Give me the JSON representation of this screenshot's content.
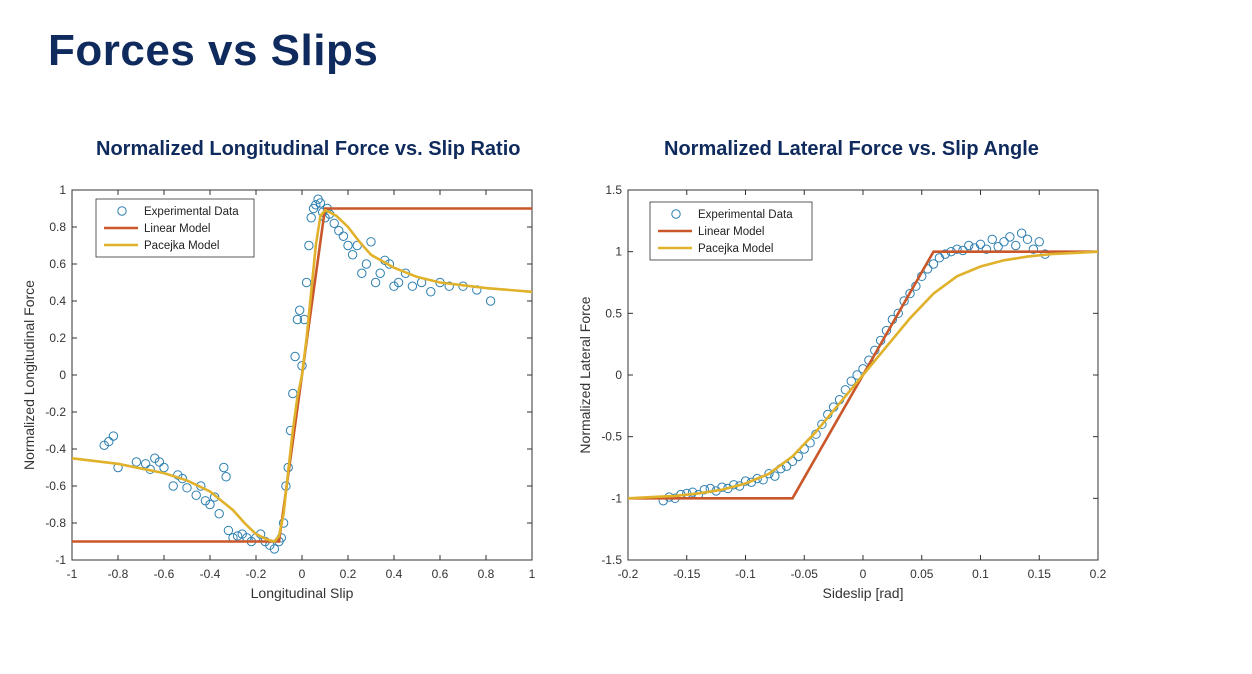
{
  "slide": {
    "title": "Forces vs Slips"
  },
  "colors": {
    "title": "#0f2a5c",
    "experimental": "#2d7fb0",
    "linear": "#c9572a",
    "pacejka": "#e0b12a"
  },
  "chart_data": [
    {
      "type": "scatter",
      "title": "Normalized Longitudinal Force vs. Slip Ratio",
      "xlabel": "Longitudinal Slip",
      "ylabel": "Normalized Longitudinal Force",
      "xlim": [
        -1,
        1
      ],
      "ylim": [
        -1,
        1
      ],
      "xticks": [
        -1,
        -0.8,
        -0.6,
        -0.4,
        -0.2,
        0,
        0.2,
        0.4,
        0.6,
        0.8,
        1
      ],
      "yticks": [
        -1,
        -0.8,
        -0.6,
        -0.4,
        -0.2,
        0,
        0.2,
        0.4,
        0.6,
        0.8,
        1
      ],
      "xtick_labels": [
        "-1",
        "-0.8",
        "-0.6",
        "-0.4",
        "-0.2",
        "0",
        "0.2",
        "0.4",
        "0.6",
        "0.8",
        "1"
      ],
      "ytick_labels": [
        "-1",
        "-0.8",
        "-0.6",
        "-0.4",
        "-0.2",
        "0",
        "0.2",
        "0.4",
        "0.6",
        "0.8",
        "1"
      ],
      "legend": [
        "Experimental Data",
        "Linear Model",
        "Pacejka Model"
      ],
      "legend_position": "top-left",
      "series": [
        {
          "name": "Experimental Data",
          "kind": "markers",
          "x": [
            -0.86,
            -0.84,
            -0.82,
            -0.8,
            -0.72,
            -0.68,
            -0.66,
            -0.64,
            -0.62,
            -0.6,
            -0.56,
            -0.54,
            -0.52,
            -0.5,
            -0.46,
            -0.44,
            -0.42,
            -0.4,
            -0.38,
            -0.36,
            -0.34,
            -0.33,
            -0.32,
            -0.3,
            -0.28,
            -0.26,
            -0.24,
            -0.22,
            -0.2,
            -0.18,
            -0.16,
            -0.14,
            -0.12,
            -0.1,
            -0.09,
            -0.08,
            -0.07,
            -0.06,
            -0.05,
            -0.04,
            -0.03,
            -0.02,
            -0.01,
            0,
            0.01,
            0.02,
            0.03,
            0.04,
            0.05,
            0.06,
            0.07,
            0.08,
            0.09,
            0.1,
            0.11,
            0.12,
            0.14,
            0.16,
            0.18,
            0.2,
            0.22,
            0.24,
            0.26,
            0.28,
            0.3,
            0.32,
            0.34,
            0.36,
            0.38,
            0.4,
            0.42,
            0.45,
            0.48,
            0.52,
            0.56,
            0.6,
            0.64,
            0.7,
            0.76,
            0.82
          ],
          "y": [
            -0.38,
            -0.36,
            -0.33,
            -0.5,
            -0.47,
            -0.48,
            -0.51,
            -0.45,
            -0.47,
            -0.5,
            -0.6,
            -0.54,
            -0.56,
            -0.61,
            -0.65,
            -0.6,
            -0.68,
            -0.7,
            -0.66,
            -0.75,
            -0.5,
            -0.55,
            -0.84,
            -0.88,
            -0.87,
            -0.86,
            -0.88,
            -0.9,
            -0.88,
            -0.86,
            -0.9,
            -0.92,
            -0.94,
            -0.9,
            -0.88,
            -0.8,
            -0.6,
            -0.5,
            -0.3,
            -0.1,
            0.1,
            0.3,
            0.35,
            0.05,
            0.3,
            0.5,
            0.7,
            0.85,
            0.9,
            0.92,
            0.95,
            0.93,
            0.88,
            0.85,
            0.9,
            0.87,
            0.82,
            0.78,
            0.75,
            0.7,
            0.65,
            0.7,
            0.55,
            0.6,
            0.72,
            0.5,
            0.55,
            0.62,
            0.6,
            0.48,
            0.5,
            0.55,
            0.48,
            0.5,
            0.45,
            0.5,
            0.48,
            0.48,
            0.46,
            0.4
          ]
        },
        {
          "name": "Linear Model",
          "kind": "line",
          "x": [
            -1,
            -0.1,
            0.1,
            1
          ],
          "y": [
            -0.9,
            -0.9,
            0.9,
            0.9
          ]
        },
        {
          "name": "Pacejka Model",
          "kind": "line",
          "x": [
            -1,
            -0.8,
            -0.6,
            -0.5,
            -0.4,
            -0.3,
            -0.25,
            -0.2,
            -0.15,
            -0.12,
            -0.1,
            -0.08,
            -0.06,
            -0.04,
            -0.02,
            0,
            0.02,
            0.04,
            0.06,
            0.08,
            0.1,
            0.12,
            0.15,
            0.2,
            0.25,
            0.3,
            0.4,
            0.5,
            0.6,
            0.8,
            1
          ],
          "y": [
            -0.45,
            -0.48,
            -0.53,
            -0.57,
            -0.63,
            -0.73,
            -0.8,
            -0.86,
            -0.89,
            -0.9,
            -0.87,
            -0.75,
            -0.52,
            -0.3,
            -0.12,
            0,
            0.2,
            0.45,
            0.7,
            0.86,
            0.89,
            0.88,
            0.86,
            0.8,
            0.72,
            0.65,
            0.58,
            0.53,
            0.5,
            0.47,
            0.45
          ]
        }
      ]
    },
    {
      "type": "scatter",
      "title": "Normalized Lateral Force vs. Slip Angle",
      "xlabel": "Sideslip [rad]",
      "ylabel": "Normalized Lateral Force",
      "xlim": [
        -0.2,
        0.2
      ],
      "ylim": [
        -1.5,
        1.5
      ],
      "xticks": [
        -0.2,
        -0.15,
        -0.1,
        -0.05,
        0,
        0.05,
        0.1,
        0.15,
        0.2
      ],
      "yticks": [
        -1.5,
        -1,
        -0.5,
        0,
        0.5,
        1,
        1.5
      ],
      "xtick_labels": [
        "-0.2",
        "-0.15",
        "-0.1",
        "-0.05",
        "0",
        "0.05",
        "0.1",
        "0.15",
        "0.2"
      ],
      "ytick_labels": [
        "-1.5",
        "-1",
        "-0.5",
        "0",
        "0.5",
        "1",
        "1.5"
      ],
      "legend": [
        "Experimental Data",
        "Linear Model",
        "Pacejka Model"
      ],
      "legend_position": "top-left",
      "series": [
        {
          "name": "Experimental Data",
          "kind": "markers",
          "x": [
            -0.17,
            -0.165,
            -0.16,
            -0.155,
            -0.15,
            -0.145,
            -0.14,
            -0.135,
            -0.13,
            -0.125,
            -0.12,
            -0.115,
            -0.11,
            -0.105,
            -0.1,
            -0.095,
            -0.09,
            -0.085,
            -0.08,
            -0.075,
            -0.07,
            -0.065,
            -0.06,
            -0.055,
            -0.05,
            -0.045,
            -0.04,
            -0.035,
            -0.03,
            -0.025,
            -0.02,
            -0.015,
            -0.01,
            -0.005,
            0,
            0.005,
            0.01,
            0.015,
            0.02,
            0.025,
            0.03,
            0.035,
            0.04,
            0.045,
            0.05,
            0.055,
            0.06,
            0.065,
            0.07,
            0.075,
            0.08,
            0.085,
            0.09,
            0.095,
            0.1,
            0.105,
            0.11,
            0.115,
            0.12,
            0.125,
            0.13,
            0.135,
            0.14,
            0.145,
            0.15,
            0.155
          ],
          "y": [
            -1.02,
            -0.99,
            -1.0,
            -0.97,
            -0.96,
            -0.95,
            -0.97,
            -0.93,
            -0.92,
            -0.94,
            -0.91,
            -0.92,
            -0.89,
            -0.9,
            -0.86,
            -0.87,
            -0.84,
            -0.85,
            -0.8,
            -0.82,
            -0.76,
            -0.74,
            -0.7,
            -0.66,
            -0.6,
            -0.55,
            -0.48,
            -0.4,
            -0.32,
            -0.26,
            -0.2,
            -0.12,
            -0.05,
            0.0,
            0.05,
            0.12,
            0.2,
            0.28,
            0.36,
            0.45,
            0.5,
            0.6,
            0.66,
            0.72,
            0.8,
            0.86,
            0.9,
            0.95,
            0.98,
            1.0,
            1.02,
            1.01,
            1.05,
            1.03,
            1.06,
            1.02,
            1.1,
            1.04,
            1.08,
            1.12,
            1.05,
            1.15,
            1.1,
            1.02,
            1.08,
            0.98
          ]
        },
        {
          "name": "Linear Model",
          "kind": "line",
          "x": [
            -0.2,
            -0.06,
            0.06,
            0.2
          ],
          "y": [
            -1,
            -1,
            1,
            1
          ]
        },
        {
          "name": "Pacejka Model",
          "kind": "line",
          "x": [
            -0.2,
            -0.18,
            -0.16,
            -0.14,
            -0.12,
            -0.1,
            -0.08,
            -0.06,
            -0.04,
            -0.02,
            0,
            0.02,
            0.04,
            0.06,
            0.08,
            0.1,
            0.12,
            0.14,
            0.16,
            0.18,
            0.2
          ],
          "y": [
            -1.0,
            -0.99,
            -0.98,
            -0.96,
            -0.93,
            -0.88,
            -0.8,
            -0.66,
            -0.46,
            -0.23,
            0,
            0.23,
            0.46,
            0.66,
            0.8,
            0.88,
            0.93,
            0.96,
            0.98,
            0.99,
            1.0
          ]
        }
      ]
    }
  ]
}
